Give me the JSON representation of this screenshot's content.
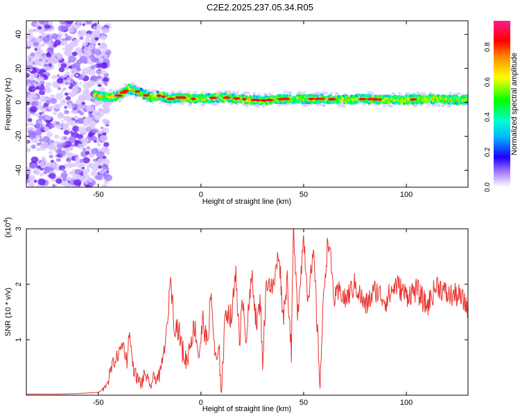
{
  "page": {
    "title": "C2E2.2025.237.05.34.R05"
  },
  "chart_data": [
    {
      "type": "heatmap",
      "xlabel": "Height of straight line (km)",
      "ylabel": "Frequency (Hz)",
      "xlim": [
        -85,
        130
      ],
      "ylim": [
        -50,
        48
      ],
      "xticks": [
        -50,
        0,
        50,
        100
      ],
      "yticks": [
        -40,
        -20,
        0,
        20,
        40
      ],
      "grid": false,
      "colorbar": {
        "label": "Normalized spectral amplitude",
        "range": [
          0,
          0.95
        ],
        "ticks": [
          0.0,
          0.2,
          0.4,
          0.6,
          0.8
        ]
      },
      "ridge": [
        [
          -50,
          4
        ],
        [
          -45,
          3
        ],
        [
          -40,
          4
        ],
        [
          -35,
          8
        ],
        [
          -30,
          6
        ],
        [
          -25,
          3
        ],
        [
          -20,
          4
        ],
        [
          -15,
          2
        ],
        [
          -10,
          3
        ],
        [
          -5,
          2
        ],
        [
          0,
          2
        ],
        [
          10,
          3
        ],
        [
          20,
          2
        ],
        [
          30,
          1
        ],
        [
          40,
          2
        ],
        [
          50,
          2
        ],
        [
          60,
          2
        ],
        [
          70,
          1.5
        ],
        [
          80,
          2
        ],
        [
          90,
          1.5
        ],
        [
          100,
          1.5
        ],
        [
          110,
          2
        ],
        [
          120,
          1.5
        ],
        [
          130,
          1.5
        ]
      ]
    },
    {
      "type": "line",
      "xlabel": "Height of straight line (km)",
      "ylabel": "SNR (10 * v/v)",
      "multiplier": "(x10",
      "multiplier_exp": "4",
      "multiplier_close": ")",
      "xlim": [
        -85,
        130
      ],
      "ylim": [
        0,
        3
      ],
      "xticks": [
        -50,
        0,
        50,
        100
      ],
      "yticks": [
        1,
        2,
        3
      ],
      "grid": false,
      "color": "#e8322e",
      "series": [
        {
          "x": [
            -85,
            -70,
            -60,
            -50,
            -47,
            -45,
            -43,
            -40,
            -38,
            -36,
            -35,
            -33,
            -31,
            -29,
            -27,
            -25,
            -23,
            -20,
            -18,
            -16,
            -15,
            -13,
            -11,
            -9,
            -7,
            -5,
            -3,
            -1,
            1,
            3,
            5,
            7,
            9,
            10,
            12,
            15,
            17,
            19,
            20,
            22,
            25,
            27,
            29,
            30,
            32,
            35,
            38,
            40,
            42,
            44,
            45,
            47,
            50,
            52,
            55,
            57,
            58,
            60,
            62,
            65,
            68,
            70,
            75,
            80,
            85,
            90,
            95,
            100,
            105,
            110,
            115,
            120,
            125,
            130
          ],
          "y": [
            0.02,
            0.02,
            0.03,
            0.05,
            0.12,
            0.3,
            0.55,
            0.75,
            0.95,
            0.6,
            1.15,
            0.5,
            0.3,
            0.2,
            0.4,
            0.15,
            0.3,
            0.35,
            0.8,
            1.35,
            2.2,
            1.3,
            1.2,
            0.8,
            0.6,
            1.0,
            1.25,
            0.7,
            1.35,
            0.9,
            1.8,
            0.6,
            0.7,
            0.1,
            1.55,
            1.4,
            2.3,
            0.7,
            1.9,
            1.05,
            2.2,
            1.25,
            1.7,
            0.6,
            2.1,
            1.9,
            2.6,
            1.4,
            2.1,
            0.8,
            2.95,
            1.5,
            2.85,
            1.8,
            2.5,
            0.9,
            0.25,
            2.0,
            2.85,
            1.7,
            1.9,
            1.7,
            2.0,
            1.6,
            1.9,
            1.7,
            2.0,
            1.8,
            1.9,
            1.6,
            2.0,
            1.8,
            1.8,
            1.6
          ]
        }
      ]
    }
  ]
}
